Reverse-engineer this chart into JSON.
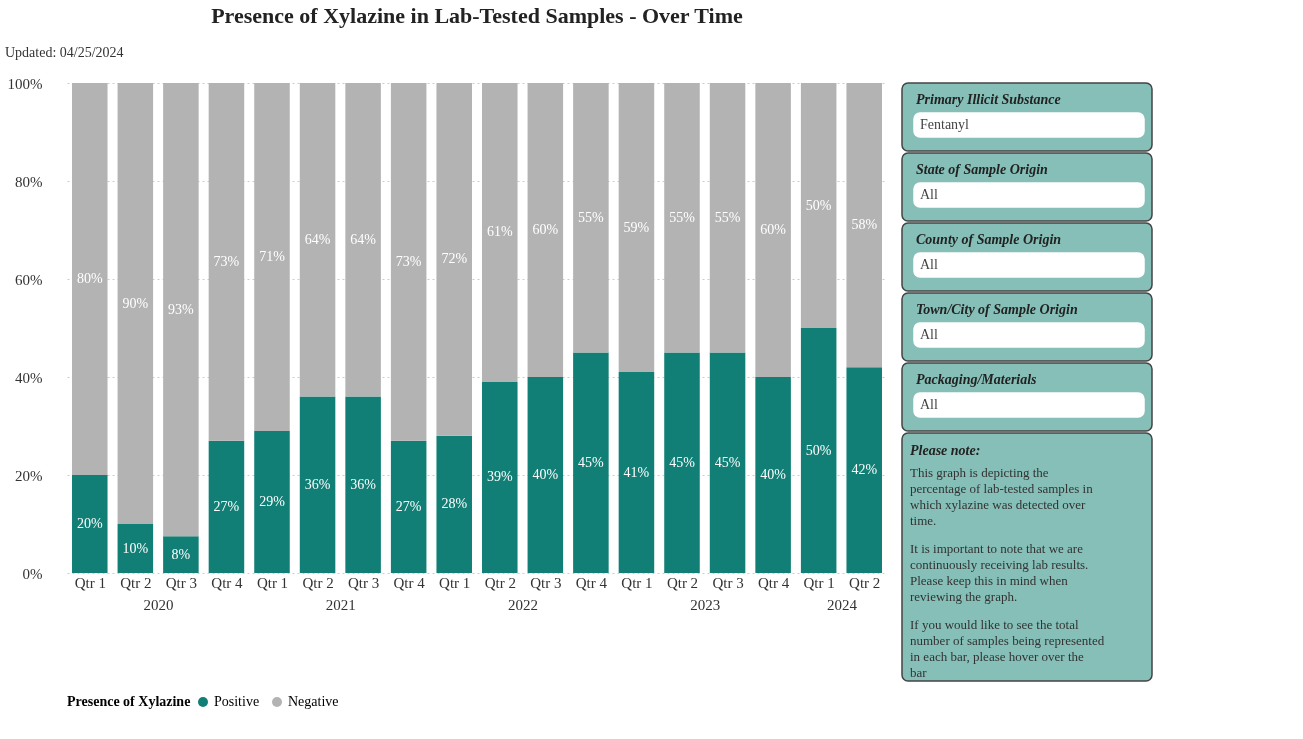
{
  "chart_data": {
    "type": "bar",
    "title": "Presence of Xylazine in Lab-Tested Samples - Over Time",
    "stacked": true,
    "categories": [
      "Qtr 1",
      "Qtr 2",
      "Qtr 3",
      "Qtr 4",
      "Qtr 1",
      "Qtr 2",
      "Qtr 3",
      "Qtr 4",
      "Qtr 1",
      "Qtr 2",
      "Qtr 3",
      "Qtr 4",
      "Qtr 1",
      "Qtr 2",
      "Qtr 3",
      "Qtr 4",
      "Qtr 1",
      "Qtr 2"
    ],
    "series": [
      {
        "name": "Positive",
        "color": "#117f75",
        "values": [
          20,
          10,
          7.5,
          27,
          29,
          36,
          36,
          27,
          28,
          39,
          40,
          45,
          41,
          45,
          45,
          40,
          50,
          42
        ],
        "value_labels": [
          "20%",
          "10%",
          "8%",
          "27%",
          "29%",
          "36%",
          "36%",
          "27%",
          "28%",
          "39%",
          "40%",
          "45%",
          "41%",
          "45%",
          "45%",
          "40%",
          "50%",
          "42%"
        ]
      },
      {
        "name": "Negative",
        "color": "#b3b3b3",
        "values": [
          80,
          90,
          92.5,
          73,
          71,
          64,
          64,
          73,
          72,
          61,
          60,
          55,
          59,
          55,
          55,
          60,
          50,
          58
        ],
        "value_labels": [
          "80%",
          "90%",
          "93%",
          "73%",
          "71%",
          "64%",
          "64%",
          "73%",
          "72%",
          "61%",
          "60%",
          "55%",
          "59%",
          "55%",
          "55%",
          "60%",
          "50%",
          "58%"
        ]
      }
    ],
    "legend_title": "Presence of Xylazine",
    "legend": "bottom",
    "grid": "y",
    "ylim": [
      0,
      100
    ],
    "yticks": [
      {
        "value": 0,
        "label": "0%"
      },
      {
        "value": 20,
        "label": "20%"
      },
      {
        "value": 40,
        "label": "40%"
      },
      {
        "value": 60,
        "label": "60%"
      },
      {
        "value": 80,
        "label": "80%"
      },
      {
        "value": 100,
        "label": "100%"
      }
    ],
    "annotations": [
      "Updated: 04/25/2024",
      "2020",
      "2021",
      "2022",
      "2023",
      "2024",
      "Primary Illicit Substance",
      "Fentanyl",
      "State of Sample Origin",
      "All",
      "County of Sample Origin",
      "All",
      "Town/City of Sample Origin",
      "All",
      "Packaging/Materials",
      "All",
      "Please note:",
      "This graph is depicting the percentage of lab-tested samples in which xylazine was detected over time.",
      "It is important to note that we are continuously receiving lab results. Please keep this in mind when reviewing the graph.",
      "If you would like to see the total number of samples being represented in each bar, please hover over the bar"
    ]
  }
}
